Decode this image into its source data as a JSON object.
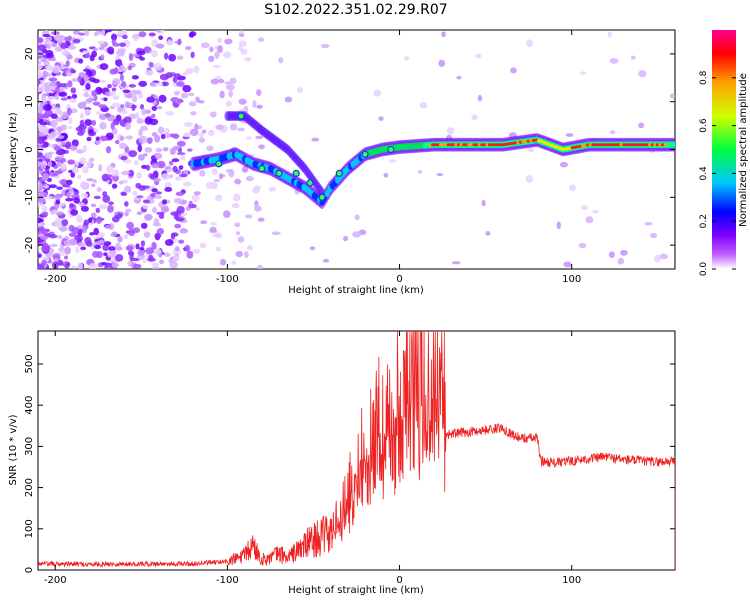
{
  "title": "S102.2022.351.02.29.R07",
  "chart_data": [
    {
      "type": "heatmap",
      "xlabel": "Height of straight line (km)",
      "ylabel": "Frequency (Hz)",
      "xlim": [
        -210,
        160
      ],
      "ylim": [
        -25,
        25
      ],
      "xticks": [
        -200,
        -100,
        0,
        100
      ],
      "yticks": [
        -20,
        -10,
        0,
        10,
        20
      ],
      "colorbar": {
        "label": "Normalized spectral amplitude",
        "range": [
          0.0,
          1.0
        ],
        "ticks": [
          0.0,
          0.2,
          0.4,
          0.6,
          0.8
        ],
        "tick_labels": [
          "0.0",
          "0.2",
          "0.4",
          "0.6",
          "0.8"
        ],
        "colors": [
          "#ffffff",
          "#b000ff",
          "#0000ff",
          "#00d0ff",
          "#00ff00",
          "#ffff00",
          "#ff0000",
          "#ff00a0"
        ]
      },
      "ridge": [
        {
          "x": -120,
          "y": -3
        },
        {
          "x": -105,
          "y": -2
        },
        {
          "x": -95,
          "y": -1
        },
        {
          "x": -85,
          "y": -3
        },
        {
          "x": -75,
          "y": -4
        },
        {
          "x": -65,
          "y": -6
        },
        {
          "x": -55,
          "y": -8
        },
        {
          "x": -45,
          "y": -11
        },
        {
          "x": -40,
          "y": -8
        },
        {
          "x": -30,
          "y": -4
        },
        {
          "x": -20,
          "y": -1
        },
        {
          "x": -10,
          "y": 0
        },
        {
          "x": 0,
          "y": 0.5
        },
        {
          "x": 20,
          "y": 1
        },
        {
          "x": 60,
          "y": 1
        },
        {
          "x": 80,
          "y": 2
        },
        {
          "x": 95,
          "y": 0
        },
        {
          "x": 110,
          "y": 1
        },
        {
          "x": 160,
          "y": 1
        }
      ],
      "upper_branch": [
        {
          "x": -100,
          "y": 7
        },
        {
          "x": -90,
          "y": 7
        },
        {
          "x": -80,
          "y": 4
        },
        {
          "x": -65,
          "y": 0
        },
        {
          "x": -55,
          "y": -4
        },
        {
          "x": -45,
          "y": -9
        }
      ]
    },
    {
      "type": "line",
      "xlabel": "Height of straight line (km)",
      "ylabel": "SNR (10 * v/v)",
      "xlim": [
        -210,
        160
      ],
      "ylim": [
        0,
        580
      ],
      "xticks": [
        -200,
        -100,
        0,
        100
      ],
      "yticks": [
        0,
        100,
        200,
        300,
        400,
        500
      ],
      "color": "#ee2222",
      "series": [
        {
          "x": [
            -210,
            -180,
            -150,
            -120,
            -100,
            -90,
            -85,
            -80,
            -75,
            -70,
            -65,
            -60,
            -55,
            -50,
            -45,
            -40,
            -35,
            -30,
            -25,
            -20,
            -15,
            -10,
            -5,
            0,
            5,
            10,
            15,
            20,
            25,
            27,
            30,
            40,
            50,
            60,
            65,
            70,
            80,
            82,
            90,
            100,
            110,
            120,
            130,
            140,
            150,
            160
          ],
          "y": [
            15,
            14,
            15,
            15,
            20,
            35,
            60,
            25,
            30,
            40,
            30,
            45,
            60,
            75,
            80,
            90,
            120,
            180,
            250,
            290,
            320,
            350,
            370,
            380,
            420,
            480,
            460,
            520,
            540,
            330,
            330,
            335,
            340,
            345,
            330,
            320,
            320,
            265,
            260,
            265,
            270,
            275,
            268,
            265,
            262,
            265
          ]
        }
      ]
    }
  ]
}
